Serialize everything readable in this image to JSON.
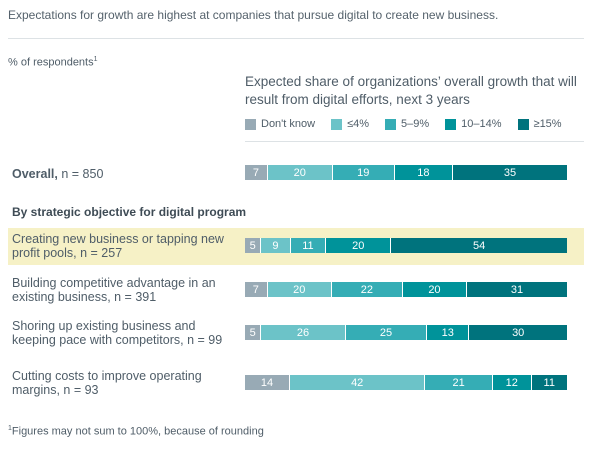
{
  "title": "Expectations for growth are highest at companies that pursue digital to create new business.",
  "chart_data": {
    "type": "bar",
    "orientation": "horizontal-stacked-100",
    "unit_label": "% of respondents",
    "unit_footnote_mark": "1",
    "title": "Expected share of organizations’ overall growth that will result from digital efforts, next 3 years",
    "legend_position": "top",
    "series": [
      {
        "name": "Don't know",
        "color": "#98aab5"
      },
      {
        "name": "≤4%",
        "color": "#6cc3c8"
      },
      {
        "name": "5–9%",
        "color": "#35adb5"
      },
      {
        "name": "10–14%",
        "color": "#00939a"
      },
      {
        "name": "≥15%",
        "color": "#00737d"
      }
    ],
    "overall": {
      "label": "Overall,",
      "n": "n = 850",
      "values": [
        7,
        20,
        19,
        18,
        35
      ]
    },
    "section_heading": "By strategic objective for digital program",
    "rows": [
      {
        "label": "Creating new business or tapping new profit pools, n = 257",
        "values": [
          5,
          9,
          11,
          20,
          54
        ],
        "highlighted": true
      },
      {
        "label": "Building competitive advantage in an existing business, n = 391",
        "values": [
          7,
          20,
          22,
          20,
          31
        ]
      },
      {
        "label": "Shoring up existing business and keeping pace with competitors, n = 99",
        "values": [
          5,
          26,
          25,
          13,
          30
        ]
      },
      {
        "label": "Cutting costs to improve operating margins, n = 93",
        "values": [
          14,
          42,
          21,
          12,
          11
        ]
      }
    ]
  },
  "footnote": {
    "mark": "1",
    "text": "Figures may not sum to 100%, because of rounding"
  },
  "highlight_color": "#f6f1c6"
}
